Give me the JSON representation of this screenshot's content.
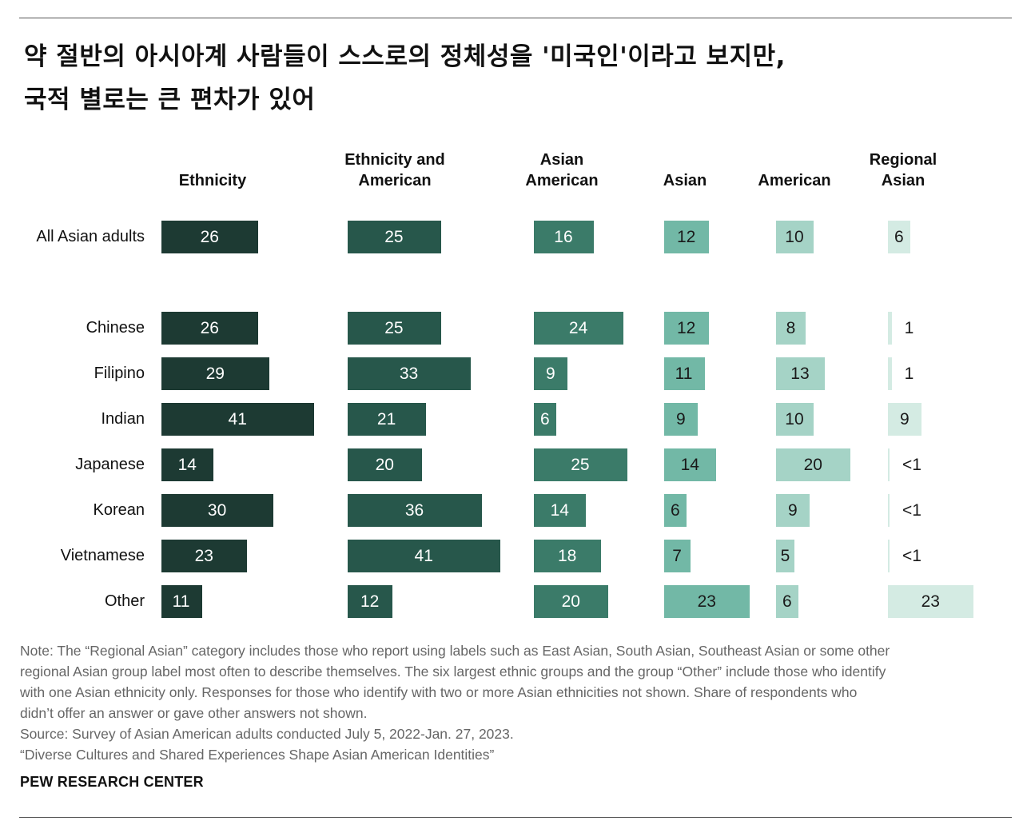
{
  "title_line1": "약 절반의 아시아계 사람들이 스스로의 정체성을 '미국인'이라고 보지만,",
  "title_line2": "국적 별로는 큰 편차가 있어",
  "chart_data": {
    "type": "bar",
    "orientation": "horizontal",
    "categories": [
      "All Asian adults",
      "Chinese",
      "Filipino",
      "Indian",
      "Japanese",
      "Korean",
      "Vietnamese",
      "Other"
    ],
    "series": [
      {
        "name": "Ethnicity",
        "color": "#1d3a33",
        "values": [
          26,
          26,
          29,
          41,
          14,
          30,
          23,
          11
        ],
        "labels": [
          "26",
          "26",
          "29",
          "41",
          "14",
          "30",
          "23",
          "11"
        ]
      },
      {
        "name": "Ethnicity and\nAmerican",
        "color": "#27574b",
        "values": [
          25,
          25,
          33,
          21,
          20,
          36,
          41,
          12
        ],
        "labels": [
          "25",
          "25",
          "33",
          "21",
          "20",
          "36",
          "41",
          "12"
        ]
      },
      {
        "name": "Asian\nAmerican",
        "color": "#3b7b69",
        "values": [
          16,
          24,
          9,
          6,
          25,
          14,
          18,
          20
        ],
        "labels": [
          "16",
          "24",
          "9",
          "6",
          "25",
          "14",
          "18",
          "20"
        ]
      },
      {
        "name": "Asian",
        "color": "#72b8a6",
        "values": [
          12,
          12,
          11,
          9,
          14,
          6,
          7,
          23
        ],
        "labels": [
          "12",
          "12",
          "11",
          "9",
          "14",
          "6",
          "7",
          "23"
        ]
      },
      {
        "name": "American",
        "color": "#a5d3c6",
        "values": [
          10,
          8,
          13,
          10,
          20,
          9,
          5,
          6
        ],
        "labels": [
          "10",
          "8",
          "13",
          "10",
          "20",
          "9",
          "5",
          "6"
        ]
      },
      {
        "name": "Regional\nAsian",
        "color": "#d4ebe3",
        "values": [
          6,
          1,
          1,
          9,
          0.4,
          0.4,
          0.4,
          23
        ],
        "labels": [
          "6",
          "1",
          "1",
          "9",
          "<1",
          "<1",
          "<1",
          "23"
        ]
      }
    ],
    "xlabel": "",
    "ylabel": "",
    "grid": false,
    "legend": "column headers"
  },
  "notes": [
    "Note: The “Regional Asian” category includes those who report using labels such as East Asian, South Asian, Southeast Asian or some other",
    "regional Asian group label most often to describe themselves. The six largest ethnic groups and the group “Other” include those who identify",
    "with one Asian ethnicity only. Responses for those who identify with two or more Asian ethnicities not shown. Share of respondents who",
    "didn’t offer an answer or gave other answers not shown.",
    "Source: Survey of Asian American adults conducted July 5, 2022-Jan. 27, 2023.",
    "“Diverse Cultures and Shared Experiences Shape Asian American Identities”"
  ],
  "organization": "PEW RESEARCH CENTER"
}
